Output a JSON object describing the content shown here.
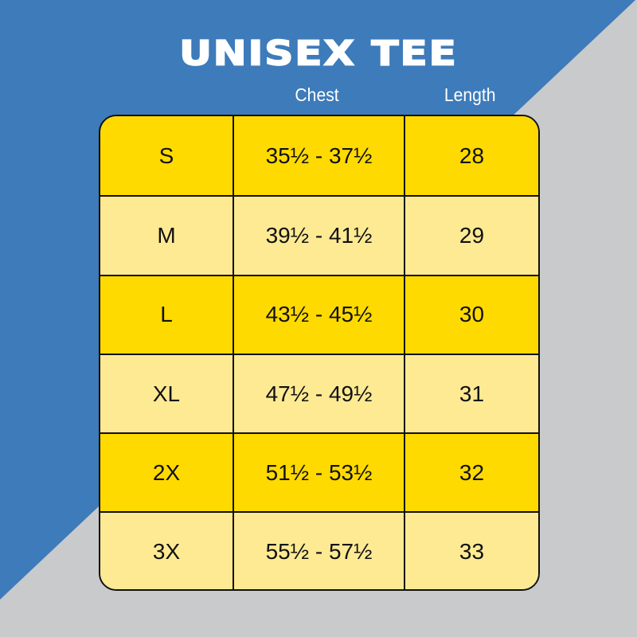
{
  "title": "UNISEX TEE",
  "headers": {
    "chest": "Chest",
    "length": "Length"
  },
  "colors": {
    "background_blue": "#3d7bba",
    "background_gray": "#c9cacc",
    "row_dark": "#ffda00",
    "row_light": "#feea93"
  },
  "rows": [
    {
      "size": "S",
      "chest": "35½ - 37½",
      "length": "28"
    },
    {
      "size": "M",
      "chest": "39½ - 41½",
      "length": "29"
    },
    {
      "size": "L",
      "chest": "43½ - 45½",
      "length": "30"
    },
    {
      "size": "XL",
      "chest": "47½ - 49½",
      "length": "31"
    },
    {
      "size": "2X",
      "chest": "51½ - 53½",
      "length": "32"
    },
    {
      "size": "3X",
      "chest": "55½ - 57½",
      "length": "33"
    }
  ]
}
